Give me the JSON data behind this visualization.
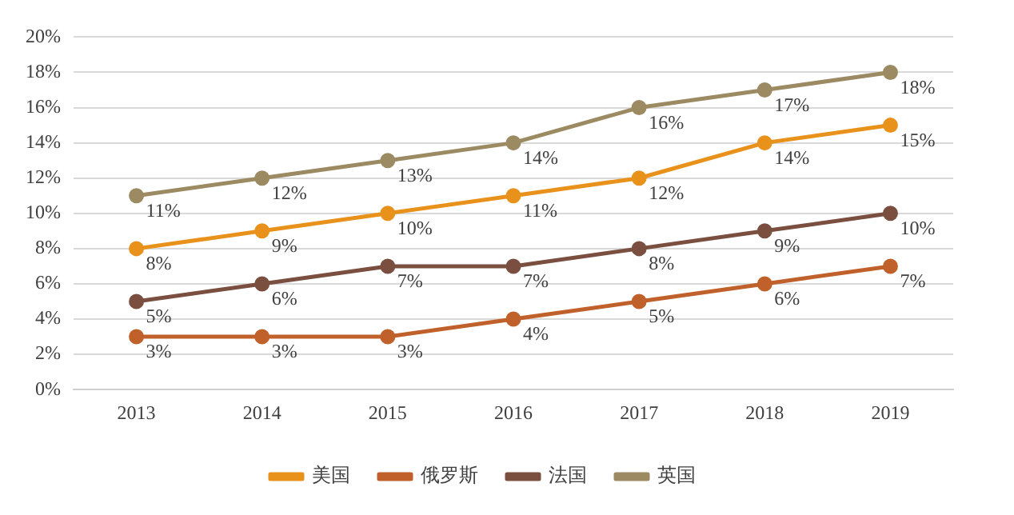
{
  "chart_data": {
    "type": "line",
    "categories": [
      "2013",
      "2014",
      "2015",
      "2016",
      "2017",
      "2018",
      "2019"
    ],
    "series": [
      {
        "name": "美国",
        "color": "#e8921c",
        "values": [
          8,
          9,
          10,
          11,
          12,
          14,
          15
        ],
        "value_labels": [
          "8%",
          "9%",
          "10%",
          "11%",
          "12%",
          "14%",
          "15%"
        ]
      },
      {
        "name": "俄罗斯",
        "color": "#c0602a",
        "values": [
          3,
          3,
          3,
          4,
          5,
          6,
          7
        ],
        "value_labels": [
          "3%",
          "3%",
          "3%",
          "4%",
          "5%",
          "6%",
          "7%"
        ]
      },
      {
        "name": "法国",
        "color": "#7a4f40",
        "values": [
          5,
          6,
          7,
          7,
          8,
          9,
          10
        ],
        "value_labels": [
          "5%",
          "6%",
          "7%",
          "7%",
          "8%",
          "9%",
          "10%"
        ]
      },
      {
        "name": "英国",
        "color": "#9c8a62",
        "values": [
          11,
          12,
          13,
          14,
          16,
          17,
          18
        ],
        "value_labels": [
          "11%",
          "12%",
          "13%",
          "14%",
          "16%",
          "17%",
          "18%"
        ]
      }
    ],
    "ylim": [
      0,
      20
    ],
    "yticks": [
      {
        "value": 0,
        "label": "0%"
      },
      {
        "value": 2,
        "label": "2%"
      },
      {
        "value": 4,
        "label": "4%"
      },
      {
        "value": 6,
        "label": "6%"
      },
      {
        "value": 8,
        "label": "8%"
      },
      {
        "value": 10,
        "label": "10%"
      },
      {
        "value": 12,
        "label": "12%"
      },
      {
        "value": 14,
        "label": "14%"
      },
      {
        "value": 16,
        "label": "16%"
      },
      {
        "value": 18,
        "label": "18%"
      },
      {
        "value": 20,
        "label": "20%"
      }
    ],
    "grid": "y",
    "legend": "bottom",
    "marker": "circle",
    "line_style": "solid"
  }
}
